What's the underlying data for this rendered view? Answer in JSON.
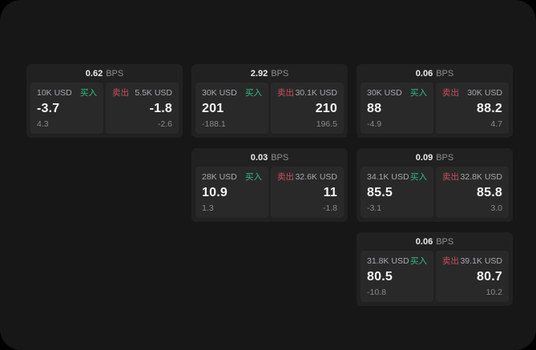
{
  "labels": {
    "bps": "BPS",
    "buy": "买入",
    "sell": "卖出"
  },
  "colors": {
    "page_bg": "#000000",
    "panel_bg": "#171717",
    "card_bg": "#212121",
    "tile_bg": "#292929",
    "buy_green": "#2ebd85",
    "sell_red": "#c94f63",
    "text_primary": "#f4f4f4",
    "text_secondary": "#a6a9ac",
    "text_muted": "#8a8a8a"
  },
  "cards": [
    {
      "bps": "0.62",
      "buy": {
        "amount": "10K USD",
        "price": "-3.7",
        "delta": "4.3"
      },
      "sell": {
        "amount": "5.5K USD",
        "price": "-1.8",
        "delta": "-2.6"
      }
    },
    {
      "bps": "2.92",
      "buy": {
        "amount": "30K USD",
        "price": "201",
        "delta": "-188.1"
      },
      "sell": {
        "amount": "30.1K USD",
        "price": "210",
        "delta": "196.5"
      }
    },
    {
      "bps": "0.06",
      "buy": {
        "amount": "30K USD",
        "price": "88",
        "delta": "-4.9"
      },
      "sell": {
        "amount": "30K USD",
        "price": "88.2",
        "delta": "4.7"
      }
    },
    {
      "bps": "0.03",
      "buy": {
        "amount": "28K USD",
        "price": "10.9",
        "delta": "1.3"
      },
      "sell": {
        "amount": "32.6K USD",
        "price": "11",
        "delta": "-1.8"
      }
    },
    {
      "bps": "0.09",
      "buy": {
        "amount": "34.1K USD",
        "price": "85.5",
        "delta": "-3.1"
      },
      "sell": {
        "amount": "32.8K USD",
        "price": "85.8",
        "delta": "3.0"
      }
    },
    {
      "bps": "0.06",
      "buy": {
        "amount": "31.8K USD",
        "price": "80.5",
        "delta": "-10.8"
      },
      "sell": {
        "amount": "39.1K USD",
        "price": "80.7",
        "delta": "10.2"
      }
    }
  ]
}
